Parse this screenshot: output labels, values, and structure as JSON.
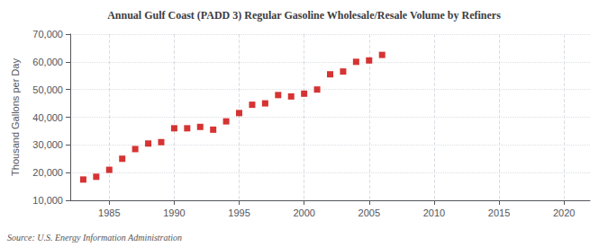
{
  "chart_data": {
    "type": "scatter",
    "title": "Annual Gulf Coast (PADD 3) Regular Gasoline Wholesale/Resale Volume by Refiners",
    "ylabel": "Thousand Gallons per Day",
    "annotation": "Source: U.S. Energy Information Administration",
    "x": [
      1983,
      1984,
      1985,
      1986,
      1987,
      1988,
      1989,
      1990,
      1991,
      1992,
      1993,
      1994,
      1995,
      1996,
      1997,
      1998,
      1999,
      2000,
      2001,
      2002,
      2003,
      2004,
      2005,
      2006
    ],
    "values": [
      17500,
      18500,
      21000,
      25000,
      28500,
      30500,
      31000,
      36000,
      36000,
      36500,
      35500,
      38500,
      41500,
      44500,
      45000,
      48000,
      47500,
      48500,
      50000,
      55500,
      56500,
      60000,
      60500,
      62500
    ],
    "color": "#cc0000",
    "marker": "square",
    "xlim": [
      1982,
      2022
    ],
    "xticks": [
      1985,
      1990,
      1995,
      2000,
      2005,
      2010,
      2015,
      2020
    ],
    "ylim": [
      10000,
      70000
    ],
    "yticks": [
      {
        "value": 10000,
        "label": "10,000"
      },
      {
        "value": 20000,
        "label": "20,000"
      },
      {
        "value": 30000,
        "label": "30,000"
      },
      {
        "value": 40000,
        "label": "40,000"
      },
      {
        "value": 50000,
        "label": "50,000"
      },
      {
        "value": 60000,
        "label": "60,000"
      },
      {
        "value": 70000,
        "label": "70,000"
      }
    ],
    "grid": true
  }
}
